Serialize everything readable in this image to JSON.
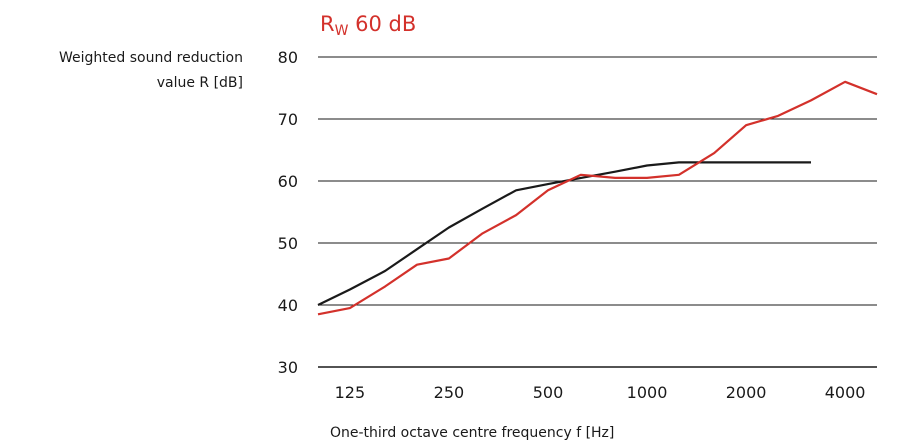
{
  "chart_data": {
    "type": "line",
    "title_main": "R",
    "title_sub": "W",
    "title_rest": " 60 dB",
    "ylabel_line1": "Weighted sound reduction",
    "ylabel_line2": "value R [dB]",
    "xlabel": "One-third octave centre frequency f [Hz]",
    "ylim": [
      30,
      80
    ],
    "yticks": [
      "30",
      "40",
      "50",
      "60",
      "70",
      "80"
    ],
    "x_scale": "log",
    "xlim": [
      100,
      5000
    ],
    "xticks": [
      {
        "value": 125,
        "label": "125"
      },
      {
        "value": 250,
        "label": "250"
      },
      {
        "value": 500,
        "label": "500"
      },
      {
        "value": 1000,
        "label": "1000"
      },
      {
        "value": 2000,
        "label": "2000"
      },
      {
        "value": 4000,
        "label": "4000"
      }
    ],
    "grid": true,
    "series": [
      {
        "color": "#1a1a1a",
        "x": [
          100,
          125,
          160,
          200,
          250,
          315,
          400,
          500,
          630,
          800,
          1000,
          1250,
          1600,
          2000,
          2500,
          3150
        ],
        "y": [
          40,
          42.5,
          45.5,
          49,
          52.5,
          55.5,
          58.5,
          59.5,
          60.5,
          61.5,
          62.5,
          63,
          63,
          63,
          63,
          63
        ]
      },
      {
        "color": "#d3312b",
        "x": [
          100,
          125,
          160,
          200,
          250,
          315,
          400,
          500,
          630,
          800,
          1000,
          1250,
          1600,
          2000,
          2500,
          3150,
          4000,
          5000
        ],
        "y": [
          38.5,
          39.5,
          43,
          46.5,
          47.5,
          51.5,
          54.5,
          58.5,
          61,
          60.5,
          60.5,
          61,
          64.5,
          69,
          70.5,
          73,
          76,
          74
        ]
      }
    ]
  }
}
